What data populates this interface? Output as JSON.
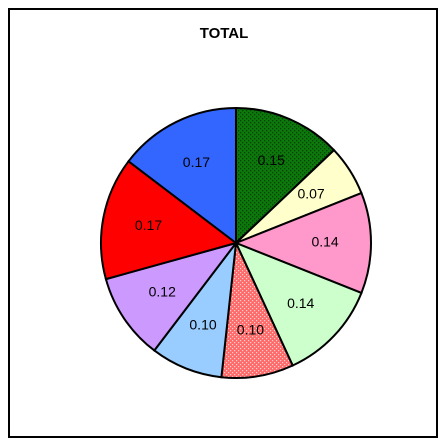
{
  "chart_data": {
    "type": "pie",
    "title": "TOTAL",
    "start_angle_deg": 0,
    "direction": "clockwise",
    "slices": [
      {
        "value": 0.15,
        "label": "0.15",
        "color": "#008000",
        "pattern": "dots-dark"
      },
      {
        "value": 0.07,
        "label": "0.07",
        "color": "#ffffcc",
        "pattern": "none"
      },
      {
        "value": 0.14,
        "label": "0.14",
        "color": "#ff99cc",
        "pattern": "none"
      },
      {
        "value": 0.14,
        "label": "0.14",
        "color": "#ccffcc",
        "pattern": "none"
      },
      {
        "value": 0.1,
        "label": "0.10",
        "color": "#ff6666",
        "pattern": "dots-light"
      },
      {
        "value": 0.1,
        "label": "0.10",
        "color": "#99ccff",
        "pattern": "none"
      },
      {
        "value": 0.12,
        "label": "0.12",
        "color": "#cc99ff",
        "pattern": "none"
      },
      {
        "value": 0.17,
        "label": "0.17",
        "color": "#ff0000",
        "pattern": "none"
      },
      {
        "value": 0.17,
        "label": "0.17",
        "color": "#3366ff",
        "pattern": "none"
      }
    ]
  }
}
